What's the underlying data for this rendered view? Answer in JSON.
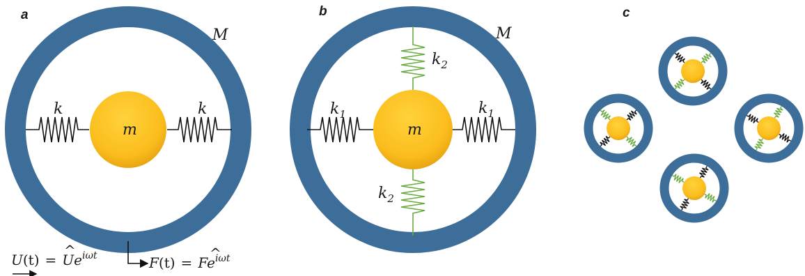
{
  "panels": {
    "a": {
      "label": "a",
      "outer_mass": "M",
      "inner_mass": "m",
      "spring_left": "k",
      "spring_right": "k",
      "displacement": {
        "lhs": "U",
        "arg": "(t)",
        "eq": "=",
        "amp": "U",
        "exp": "e",
        "sup": "iωt"
      },
      "force": {
        "lhs": "F",
        "arg": "(t)",
        "eq": "=",
        "amp": "F",
        "exp": "e",
        "sup": "iωt"
      }
    },
    "b": {
      "label": "b",
      "outer_mass": "M",
      "inner_mass": "m",
      "spring_left": {
        "base": "k",
        "sub": "1"
      },
      "spring_right": {
        "base": "k",
        "sub": "1"
      },
      "spring_top": {
        "base": "k",
        "sub": "2"
      },
      "spring_bottom": {
        "base": "k",
        "sub": "2"
      }
    },
    "c": {
      "label": "c"
    }
  },
  "colors": {
    "ring": "#3d6d99",
    "mass_light": "#ffc928",
    "mass_dark": "#e0a012",
    "spring_k1": "#111111",
    "spring_k2": "#6aab3f"
  }
}
